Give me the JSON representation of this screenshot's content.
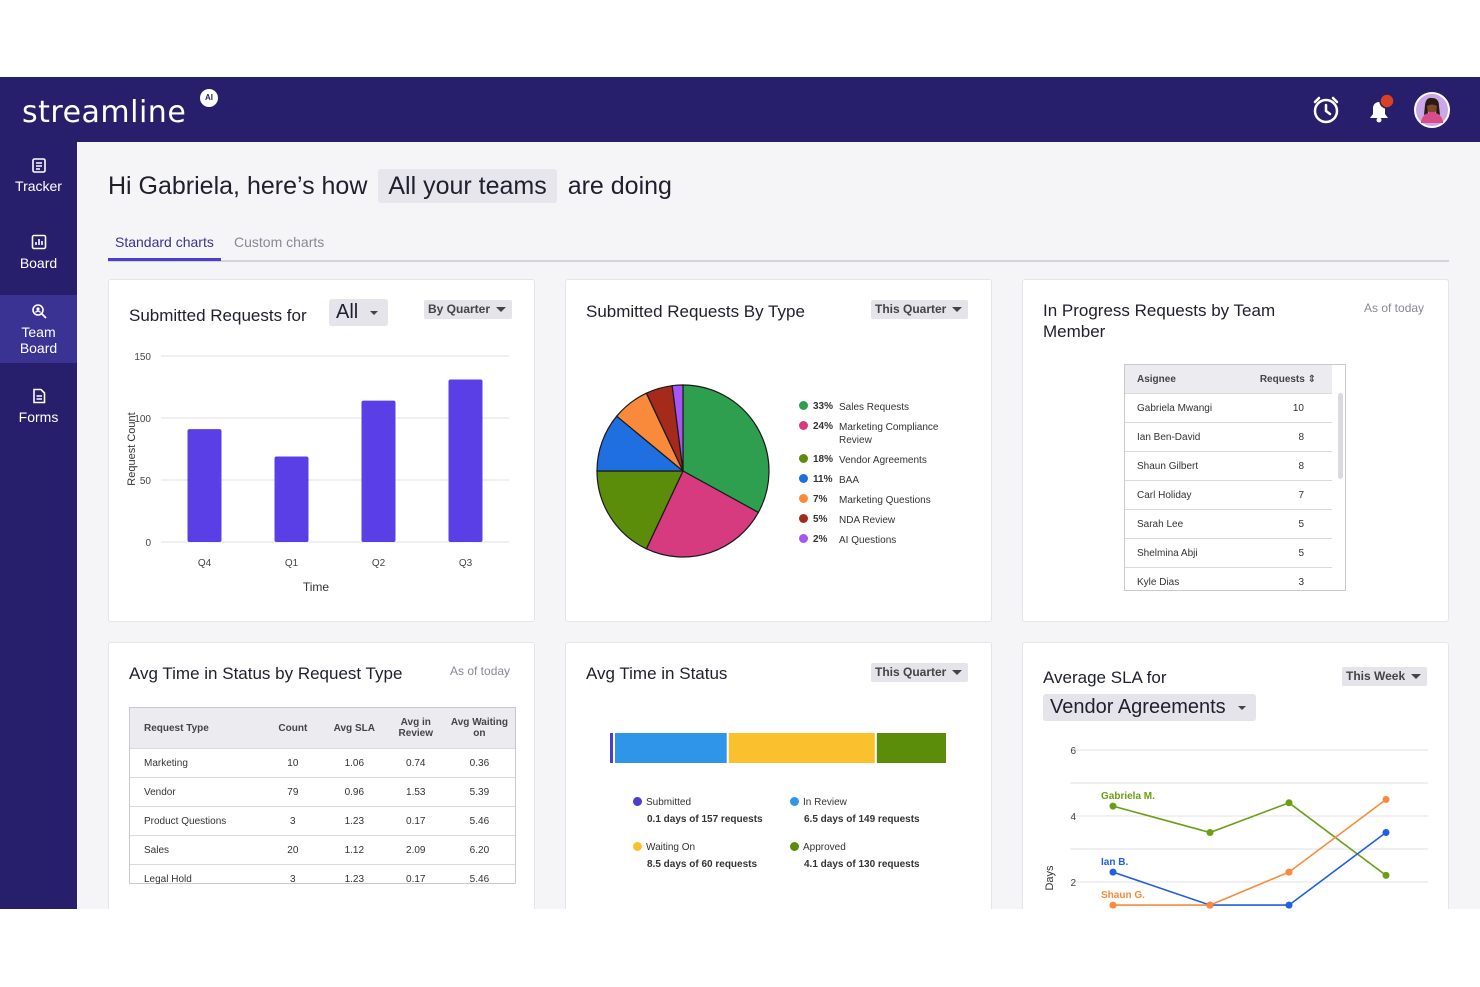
{
  "app": {
    "name": "streamline",
    "badge": "AI"
  },
  "topbar": {
    "alarm_icon": "alarm-clock-icon",
    "bell_icon": "bell-icon",
    "avatar": "user-avatar"
  },
  "sidebar": {
    "items": [
      {
        "label": "Tracker",
        "icon": "tracker-icon"
      },
      {
        "label": "Board",
        "icon": "board-icon"
      },
      {
        "label": "Team Board",
        "icon": "team-board-icon",
        "active": true
      },
      {
        "label": "Forms",
        "icon": "forms-icon"
      }
    ]
  },
  "greeting": {
    "prefix": "Hi Gabriela, here’s how",
    "selector": "All your teams",
    "suffix": "are doing"
  },
  "tabs": [
    {
      "label": "Standard charts",
      "active": true
    },
    {
      "label": "Custom charts",
      "active": false
    }
  ],
  "cards": {
    "submitted": {
      "title": "Submitted Requests for",
      "filter": "All",
      "period": "By Quarter"
    },
    "by_type": {
      "title": "Submitted Requests By Type",
      "period": "This Quarter"
    },
    "in_progress": {
      "title": "In Progress Requests by Team Member",
      "as_of": "As of today",
      "columns": [
        "Asignee",
        "Requests"
      ],
      "rows": [
        [
          "Gabriela Mwangi",
          "10"
        ],
        [
          "Ian Ben-David",
          "8"
        ],
        [
          "Shaun Gilbert",
          "8"
        ],
        [
          "Carl Holiday",
          "7"
        ],
        [
          "Sarah Lee",
          "5"
        ],
        [
          "Shelmina Abji",
          "5"
        ],
        [
          "Kyle Dias",
          "3"
        ]
      ]
    },
    "avg_time_type": {
      "title": "Avg Time in Status by Request Type",
      "as_of": "As of today",
      "columns": [
        "Request Type",
        "Count",
        "Avg SLA",
        "Avg in Review",
        "Avg Waiting on"
      ],
      "rows": [
        [
          "Marketing",
          "10",
          "1.06",
          "0.74",
          "0.36"
        ],
        [
          "Vendor",
          "79",
          "0.96",
          "1.53",
          "5.39"
        ],
        [
          "Product Questions",
          "3",
          "1.23",
          "0.17",
          "5.46"
        ],
        [
          "Sales",
          "20",
          "1.12",
          "2.09",
          "6.20"
        ],
        [
          "Legal Hold",
          "3",
          "1.23",
          "0.17",
          "5.46"
        ]
      ]
    },
    "avg_time_status": {
      "title": "Avg Time in Status",
      "period": "This Quarter",
      "items": [
        {
          "name": "Submitted",
          "detail": "0.1 days of 157 requests",
          "color": "#4b3fcf"
        },
        {
          "name": "In Review",
          "detail": "6.5 days of 149 requests",
          "color": "#2f95e8"
        },
        {
          "name": "Waiting On",
          "detail": "8.5 days of 60 requests",
          "color": "#fbc02d"
        },
        {
          "name": "Approved",
          "detail": "4.1 days of 130 requests",
          "color": "#5b8c0a"
        }
      ]
    },
    "avg_sla": {
      "title": "Average SLA for",
      "selector": "Vendor Agreements",
      "period": "This Week"
    }
  },
  "chart_data": [
    {
      "type": "bar",
      "categories": [
        "Q4",
        "Q1",
        "Q2",
        "Q3"
      ],
      "values": [
        91,
        69,
        114,
        131
      ],
      "xlabel": "Time",
      "ylabel": "Request Count",
      "ylim": [
        0,
        150
      ],
      "yticks": [
        0,
        50,
        100,
        150
      ],
      "color": "#5b3fe6",
      "grid": true
    },
    {
      "type": "pie",
      "slices": [
        {
          "pct": "33%",
          "label": "Sales Requests",
          "value": 33,
          "color": "#2e9e4f"
        },
        {
          "pct": "24%",
          "label": "Marketing Compliance Review",
          "value": 24,
          "color": "#d63a7f"
        },
        {
          "pct": "18%",
          "label": "Vendor Agreements",
          "value": 18,
          "color": "#5b8c0a"
        },
        {
          "pct": "11%",
          "label": "BAA",
          "value": 11,
          "color": "#1f6fe0"
        },
        {
          "pct": "7%",
          "label": "Marketing Questions",
          "value": 7,
          "color": "#f98a3c"
        },
        {
          "pct": "5%",
          "label": "NDA Review",
          "value": 5,
          "color": "#a52a1a"
        },
        {
          "pct": "2%",
          "label": "AI Questions",
          "value": 2,
          "color": "#a855f7"
        }
      ],
      "legend": "right"
    },
    {
      "type": "bar",
      "orientation": "horizontal-stacked",
      "segments": [
        {
          "name": "Submitted",
          "value": 0.1,
          "color": "#4b3fcf"
        },
        {
          "name": "In Review",
          "value": 6.5,
          "color": "#2f95e8"
        },
        {
          "name": "Waiting On",
          "value": 8.5,
          "color": "#fbc02d"
        },
        {
          "name": "Approved",
          "value": 4.1,
          "color": "#5b8c0a"
        }
      ]
    },
    {
      "type": "line",
      "ylabel": "Days",
      "ylim": [
        0,
        6
      ],
      "yticks": [
        2,
        4,
        6
      ],
      "x": [
        1,
        2,
        3,
        4
      ],
      "series": [
        {
          "name": "Gabriela M.",
          "values": [
            4.3,
            3.5,
            4.4,
            2.2
          ],
          "color": "#6b9e12"
        },
        {
          "name": "Ian B.",
          "values": [
            2.3,
            1.3,
            1.3,
            3.5
          ],
          "color": "#1f5fe0"
        },
        {
          "name": "Shaun G.",
          "values": [
            1.3,
            1.3,
            2.3,
            4.5
          ],
          "color": "#f98a3c"
        }
      ],
      "grid": true
    }
  ]
}
